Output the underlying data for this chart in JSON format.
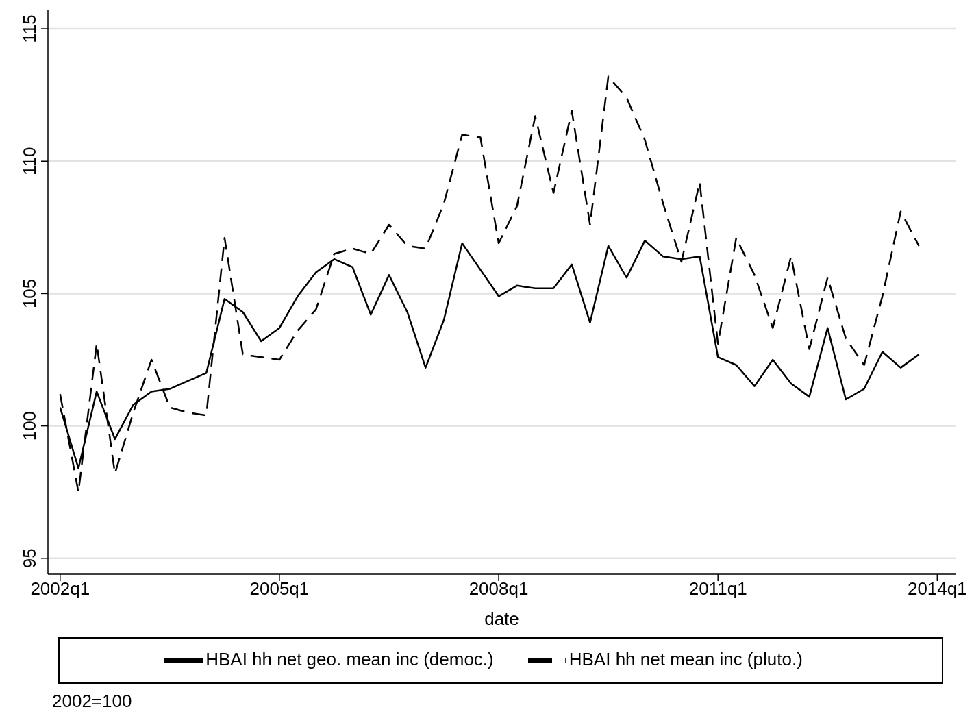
{
  "chart_data": {
    "type": "line",
    "xlabel": "date",
    "annotations": [
      "2002=100"
    ],
    "x": [
      "2002-01",
      "2002-04",
      "2002-07",
      "2002-10",
      "2003-01",
      "2003-04",
      "2003-07",
      "2003-10",
      "2004-01",
      "2004-04",
      "2004-07",
      "2004-10",
      "2005-01",
      "2005-04",
      "2005-07",
      "2005-10",
      "2006-01",
      "2006-04",
      "2006-07",
      "2006-10",
      "2007-01",
      "2007-04",
      "2007-07",
      "2007-10",
      "2008-01",
      "2008-04",
      "2008-07",
      "2008-10",
      "2009-01",
      "2009-04",
      "2009-07",
      "2009-10",
      "2010-01",
      "2010-04",
      "2010-07",
      "2010-10",
      "2011-01",
      "2011-04",
      "2011-07",
      "2011-10",
      "2012-01",
      "2012-04",
      "2012-07",
      "2012-10",
      "2013-01",
      "2013-04",
      "2013-07",
      "2013-10"
    ],
    "series": [
      {
        "name": "HBAI hh net geo. mean inc (democ.)",
        "color": "#000000",
        "line_style": "solid",
        "values": [
          100.7,
          98.4,
          101.3,
          99.5,
          100.8,
          101.3,
          101.4,
          101.7,
          102.0,
          104.8,
          104.3,
          103.2,
          103.7,
          104.9,
          105.8,
          106.3,
          106.0,
          104.2,
          105.7,
          104.3,
          102.2,
          104.0,
          106.9,
          105.9,
          104.9,
          105.3,
          105.2,
          105.2,
          106.1,
          103.9,
          106.8,
          105.6,
          107.0,
          106.4,
          106.3,
          106.4,
          102.6,
          102.3,
          101.5,
          102.5,
          101.6,
          101.1,
          103.7,
          101.0,
          101.4,
          102.8,
          102.2,
          102.7
        ]
      },
      {
        "name": "HBAI hh net mean inc (pluto.)",
        "color": "#000000",
        "line_style": "dashed",
        "values": [
          101.2,
          97.5,
          103.1,
          98.2,
          100.5,
          102.5,
          100.7,
          100.5,
          100.4,
          107.1,
          102.7,
          102.6,
          102.5,
          103.6,
          104.4,
          106.5,
          106.7,
          106.5,
          107.6,
          106.8,
          106.7,
          108.4,
          111.0,
          110.9,
          106.9,
          108.3,
          111.7,
          108.8,
          111.9,
          107.6,
          113.2,
          112.4,
          110.8,
          108.4,
          106.2,
          109.2,
          103.1,
          107.1,
          105.7,
          103.7,
          106.4,
          102.9,
          105.6,
          103.3,
          102.3,
          104.9,
          108.1,
          106.8
        ]
      }
    ],
    "xlim": [
      "2001-11",
      "2014-04"
    ],
    "xticks": [
      {
        "value": "2002-01",
        "label": "2002q1"
      },
      {
        "value": "2005-01",
        "label": "2005q1"
      },
      {
        "value": "2008-01",
        "label": "2008q1"
      },
      {
        "value": "2011-01",
        "label": "2011q1"
      },
      {
        "value": "2014-01",
        "label": "2014q1"
      }
    ],
    "ylim": [
      94.4,
      115.7
    ],
    "yticks": [
      95,
      100,
      105,
      110,
      115
    ],
    "grid": "y",
    "legend": "bottom",
    "marker": "none"
  }
}
